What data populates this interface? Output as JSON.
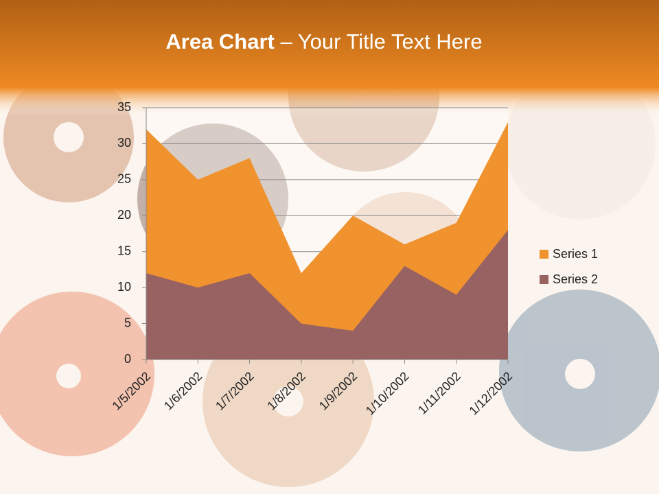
{
  "chart_data": {
    "type": "area",
    "title_bold": "Area Chart",
    "title_rest": "– Your Title Text Here",
    "categories": [
      "1/5/2002",
      "1/6/2002",
      "1/7/2002",
      "1/8/2002",
      "1/9/2002",
      "1/10/2002",
      "1/11/2002",
      "1/12/2002"
    ],
    "series": [
      {
        "name": "Series 1",
        "color": "#f0922e",
        "values": [
          32,
          25,
          28,
          12,
          20,
          16,
          19,
          33
        ]
      },
      {
        "name": "Series 2",
        "color": "#996262",
        "values": [
          12,
          10,
          12,
          5,
          4,
          13,
          9,
          18
        ]
      }
    ],
    "ylim": [
      0,
      35
    ],
    "yticks": [
      0,
      5,
      10,
      15,
      20,
      25,
      30,
      35
    ],
    "grid": true,
    "legend": "right"
  }
}
